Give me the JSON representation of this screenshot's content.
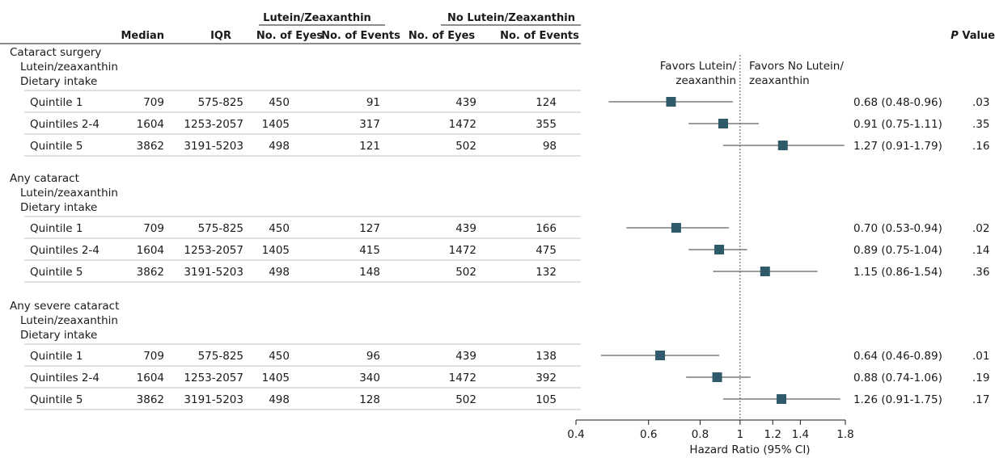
{
  "headers": {
    "median": "Median",
    "iqr": "IQR",
    "group_a": "Lutein/Zeaxanthin",
    "group_b": "No Lutein/Zeaxanthin",
    "eyes_a": "No. of Eyes",
    "events_a": "No. of Events",
    "eyes_b": "No. of Eyes",
    "events_b": "No. of Events",
    "p_italic": "P",
    "p_rest": " Value"
  },
  "favor_left": [
    "Favors Lutein/",
    "zeaxanthin"
  ],
  "favor_right": [
    "Favors No Lutein/",
    "zeaxanthin"
  ],
  "sections": [
    {
      "title": "Cataract surgery",
      "sub1": "Lutein/zeaxanthin",
      "sub2": "Dietary intake",
      "rows": [
        {
          "label": "Quintile 1",
          "median": "709",
          "iqr": "575-825",
          "eyes_a": "450",
          "events_a": "91",
          "eyes_b": "439",
          "events_b": "124",
          "ci_text": "0.68 (0.48-0.96)",
          "p": ".03"
        },
        {
          "label": "Quintiles 2-4",
          "median": "1604",
          "iqr": "1253-2057",
          "eyes_a": "1405",
          "events_a": "317",
          "eyes_b": "1472",
          "events_b": "355",
          "ci_text": "0.91 (0.75-1.11)",
          "p": ".35"
        },
        {
          "label": "Quintile 5",
          "median": "3862",
          "iqr": "3191-5203",
          "eyes_a": "498",
          "events_a": "121",
          "eyes_b": "502",
          "events_b": "98",
          "ci_text": "1.27 (0.91-1.79)",
          "p": ".16"
        }
      ]
    },
    {
      "title": "Any cataract",
      "sub1": "Lutein/zeaxanthin",
      "sub2": "Dietary intake",
      "rows": [
        {
          "label": "Quintile 1",
          "median": "709",
          "iqr": "575-825",
          "eyes_a": "450",
          "events_a": "127",
          "eyes_b": "439",
          "events_b": "166",
          "ci_text": "0.70 (0.53-0.94)",
          "p": ".02"
        },
        {
          "label": "Quintiles 2-4",
          "median": "1604",
          "iqr": "1253-2057",
          "eyes_a": "1405",
          "events_a": "415",
          "eyes_b": "1472",
          "events_b": "475",
          "ci_text": "0.89 (0.75-1.04)",
          "p": ".14"
        },
        {
          "label": "Quintile 5",
          "median": "3862",
          "iqr": "3191-5203",
          "eyes_a": "498",
          "events_a": "148",
          "eyes_b": "502",
          "events_b": "132",
          "ci_text": "1.15 (0.86-1.54)",
          "p": ".36"
        }
      ]
    },
    {
      "title": "Any severe cataract",
      "sub1": "Lutein/zeaxanthin",
      "sub2": "Dietary intake",
      "rows": [
        {
          "label": "Quintile 1",
          "median": "709",
          "iqr": "575-825",
          "eyes_a": "450",
          "events_a": "96",
          "eyes_b": "439",
          "events_b": "138",
          "ci_text": "0.64 (0.46-0.89)",
          "p": ".01"
        },
        {
          "label": "Quintiles 2-4",
          "median": "1604",
          "iqr": "1253-2057",
          "eyes_a": "1405",
          "events_a": "340",
          "eyes_b": "1472",
          "events_b": "392",
          "ci_text": "0.88 (0.74-1.06)",
          "p": ".19"
        },
        {
          "label": "Quintile 5",
          "median": "3862",
          "iqr": "3191-5203",
          "eyes_a": "498",
          "events_a": "128",
          "eyes_b": "502",
          "events_b": "105",
          "ci_text": "1.26 (0.91-1.75)",
          "p": ".17"
        }
      ]
    }
  ],
  "colors": {
    "marker": "#2f5a6a",
    "line": "#3a3a3a",
    "rule": "#bfbfbf",
    "text": "#1a1a1a"
  },
  "chart_data": {
    "type": "forest",
    "scale": "log",
    "xlabel": "Hazard Ratio (95% CI)",
    "xlim": [
      0.4,
      1.8
    ],
    "ticks": [
      0.4,
      0.6,
      0.8,
      1,
      1.2,
      1.4,
      1.8
    ],
    "tick_labels": [
      "0.4",
      "0.6",
      "0.8",
      "1",
      "1.2",
      "1.4",
      "1.8"
    ],
    "reference": 1,
    "points": [
      {
        "section": "Cataract surgery",
        "row": "Quintile 1",
        "hr": 0.68,
        "lo": 0.48,
        "hi": 0.96
      },
      {
        "section": "Cataract surgery",
        "row": "Quintiles 2-4",
        "hr": 0.91,
        "lo": 0.75,
        "hi": 1.11
      },
      {
        "section": "Cataract surgery",
        "row": "Quintile 5",
        "hr": 1.27,
        "lo": 0.91,
        "hi": 1.79
      },
      {
        "section": "Any cataract",
        "row": "Quintile 1",
        "hr": 0.7,
        "lo": 0.53,
        "hi": 0.94
      },
      {
        "section": "Any cataract",
        "row": "Quintiles 2-4",
        "hr": 0.89,
        "lo": 0.75,
        "hi": 1.04
      },
      {
        "section": "Any cataract",
        "row": "Quintile 5",
        "hr": 1.15,
        "lo": 0.86,
        "hi": 1.54
      },
      {
        "section": "Any severe cataract",
        "row": "Quintile 1",
        "hr": 0.64,
        "lo": 0.46,
        "hi": 0.89
      },
      {
        "section": "Any severe cataract",
        "row": "Quintiles 2-4",
        "hr": 0.88,
        "lo": 0.74,
        "hi": 1.06
      },
      {
        "section": "Any severe cataract",
        "row": "Quintile 5",
        "hr": 1.26,
        "lo": 0.91,
        "hi": 1.75
      }
    ]
  }
}
